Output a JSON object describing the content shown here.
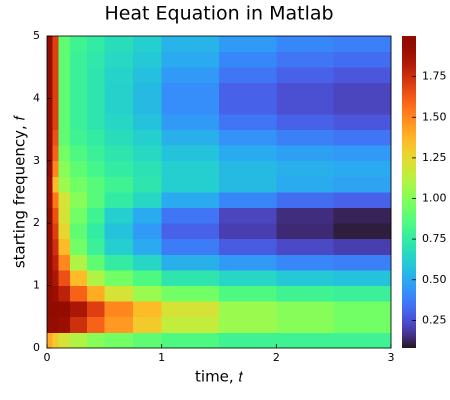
{
  "chart_data": {
    "type": "heatmap",
    "title": "Heat Equation in Matlab",
    "xlabel": "time, 𝑡",
    "ylabel": "starting frequency, 𝑓",
    "colormap": "turbo",
    "x_edges": [
      0,
      0.05,
      0.1,
      0.2,
      0.35,
      0.5,
      0.75,
      1,
      1.5,
      2,
      2.5,
      3
    ],
    "y_edges": [
      0,
      0.25,
      0.5,
      0.75,
      1,
      1.25,
      1.5,
      1.75,
      2,
      2.25,
      2.5,
      2.75,
      3,
      3.25,
      3.5,
      3.75,
      4,
      4.25,
      4.5,
      4.75,
      5
    ],
    "values": [
      [
        1.4,
        1.3,
        1.2,
        1.1,
        1.0,
        0.95,
        0.9,
        0.85,
        0.8,
        0.8,
        0.8
      ],
      [
        1.95,
        1.95,
        1.9,
        1.75,
        1.6,
        1.45,
        1.3,
        1.15,
        1.05,
        1.0,
        0.95
      ],
      [
        1.98,
        1.98,
        1.95,
        1.85,
        1.7,
        1.5,
        1.35,
        1.2,
        1.05,
        1.0,
        0.95
      ],
      [
        1.95,
        1.9,
        1.8,
        1.6,
        1.4,
        1.2,
        1.05,
        0.95,
        0.85,
        0.8,
        0.78
      ],
      [
        1.95,
        1.85,
        1.65,
        1.35,
        1.1,
        0.95,
        0.85,
        0.72,
        0.65,
        0.6,
        0.58
      ],
      [
        1.95,
        1.8,
        1.5,
        1.1,
        0.9,
        0.75,
        0.65,
        0.52,
        0.45,
        0.4,
        0.38
      ],
      [
        1.95,
        1.75,
        1.35,
        0.95,
        0.78,
        0.62,
        0.5,
        0.37,
        0.28,
        0.23,
        0.2
      ],
      [
        1.95,
        1.7,
        1.25,
        0.9,
        0.75,
        0.58,
        0.45,
        0.3,
        0.2,
        0.14,
        0.1
      ],
      [
        1.95,
        1.65,
        1.2,
        0.95,
        0.8,
        0.62,
        0.5,
        0.35,
        0.22,
        0.15,
        0.12
      ],
      [
        1.9,
        1.55,
        1.2,
        1.0,
        0.88,
        0.75,
        0.65,
        0.5,
        0.4,
        0.33,
        0.3
      ],
      [
        1.9,
        1.35,
        1.05,
        0.95,
        0.88,
        0.8,
        0.72,
        0.62,
        0.55,
        0.5,
        0.48
      ],
      [
        1.95,
        1.5,
        1.0,
        0.9,
        0.82,
        0.75,
        0.7,
        0.62,
        0.55,
        0.52,
        0.5
      ],
      [
        1.95,
        1.6,
        0.95,
        0.85,
        0.78,
        0.72,
        0.66,
        0.58,
        0.5,
        0.47,
        0.45
      ],
      [
        1.95,
        1.65,
        0.9,
        0.8,
        0.75,
        0.68,
        0.62,
        0.52,
        0.43,
        0.38,
        0.35
      ],
      [
        1.95,
        1.7,
        0.9,
        0.78,
        0.72,
        0.65,
        0.58,
        0.45,
        0.35,
        0.3,
        0.27
      ],
      [
        1.95,
        1.7,
        0.9,
        0.78,
        0.72,
        0.63,
        0.55,
        0.42,
        0.3,
        0.25,
        0.22
      ],
      [
        1.95,
        1.7,
        0.9,
        0.78,
        0.72,
        0.63,
        0.55,
        0.42,
        0.3,
        0.25,
        0.22
      ],
      [
        1.95,
        1.7,
        0.9,
        0.78,
        0.72,
        0.64,
        0.57,
        0.45,
        0.35,
        0.3,
        0.27
      ],
      [
        1.95,
        1.7,
        0.9,
        0.78,
        0.73,
        0.66,
        0.6,
        0.5,
        0.4,
        0.35,
        0.33
      ],
      [
        1.95,
        1.7,
        0.9,
        0.8,
        0.75,
        0.68,
        0.62,
        0.53,
        0.45,
        0.4,
        0.38
      ]
    ],
    "xlim": [
      0,
      3
    ],
    "xticks": [
      0,
      1,
      2,
      3
    ],
    "ylim": [
      0,
      5
    ],
    "yticks": [
      0,
      1,
      2,
      3,
      4,
      5
    ],
    "zlim": [
      0.08,
      2.0
    ],
    "zticks": [
      0.25,
      {
        "value": 0.5,
        "label": "0.50"
      },
      0.75,
      {
        "value": 1,
        "label": "1.00"
      },
      1.25,
      {
        "value": 1.5,
        "label": "1.50"
      },
      1.75
    ]
  }
}
